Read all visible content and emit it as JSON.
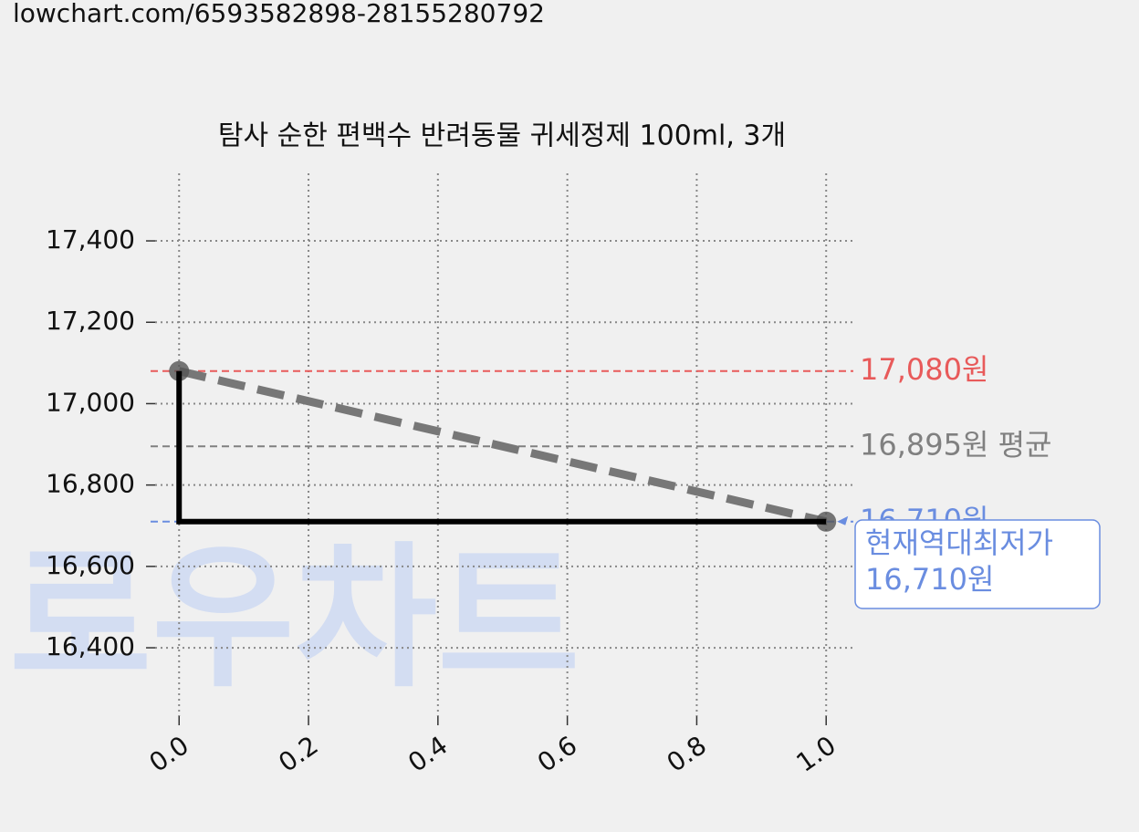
{
  "url": "lowchart.com/6593582898-28155280792",
  "chart_data": {
    "type": "line",
    "title": "탐사 순한 편백수 반려동물 귀세정제 100ml, 3개",
    "watermark": "로우차트",
    "xlim": [
      -0.037,
      1.042
    ],
    "ylim": [
      16232,
      17566
    ],
    "xticks": [
      {
        "value": 0,
        "label": "0.0"
      },
      {
        "value": 0.2,
        "label": "0.2"
      },
      {
        "value": 0.4,
        "label": "0.4"
      },
      {
        "value": 0.6,
        "label": "0.6"
      },
      {
        "value": 0.8,
        "label": "0.8"
      },
      {
        "value": 1,
        "label": "1.0"
      }
    ],
    "yticks": [
      {
        "value": 16400,
        "label": "16,400"
      },
      {
        "value": 16600,
        "label": "16,600"
      },
      {
        "value": 16800,
        "label": "16,800"
      },
      {
        "value": 17000,
        "label": "17,000"
      },
      {
        "value": 17200,
        "label": "17,200"
      },
      {
        "value": 17400,
        "label": "17,400"
      }
    ],
    "grid": true,
    "series": [
      {
        "color": "#777777",
        "style": "dashed",
        "markers": true,
        "x": [
          0,
          1
        ],
        "values": [
          17080,
          16710
        ]
      },
      {
        "color": "#000000",
        "style": "steps-pre",
        "x": [
          0,
          1
        ],
        "values": [
          17080,
          16710
        ]
      }
    ],
    "hlines": [
      {
        "value": 17080,
        "label": "17,080원",
        "color": "#e85a5a"
      },
      {
        "value": 16895,
        "label": "16,895원 평균",
        "color": "#808080"
      },
      {
        "value": 16710,
        "label": "16,710원",
        "color": "#6a8de0"
      }
    ],
    "annotation": {
      "lines": [
        "현재역대최저가",
        "16,710원"
      ],
      "x": 1,
      "y": 16710,
      "color": "#6a8de0"
    }
  }
}
